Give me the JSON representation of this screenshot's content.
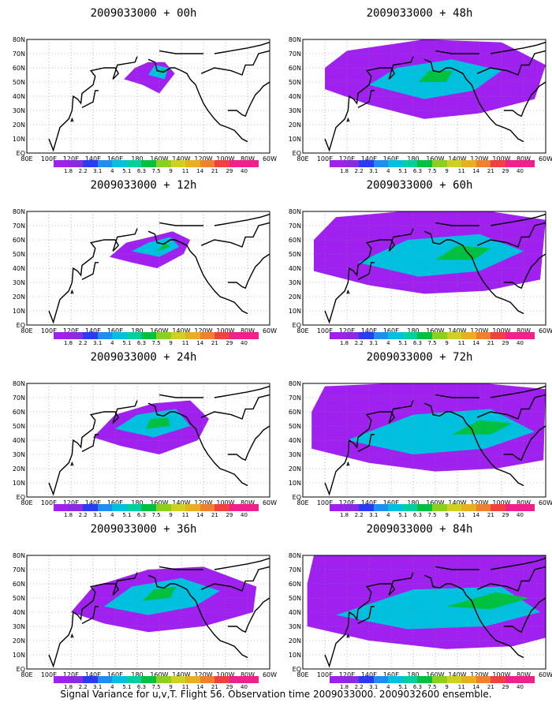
{
  "panels": [
    {
      "title": "2009033000 + 00h",
      "forecast_hour": 0
    },
    {
      "title": "2009033000 + 48h",
      "forecast_hour": 48
    },
    {
      "title": "2009033000 + 12h",
      "forecast_hour": 12
    },
    {
      "title": "2009033000 + 60h",
      "forecast_hour": 60
    },
    {
      "title": "2009033000 + 24h",
      "forecast_hour": 24
    },
    {
      "title": "2009033000 + 72h",
      "forecast_hour": 72
    },
    {
      "title": "2009033000 + 36h",
      "forecast_hour": 36
    },
    {
      "title": "2009033000 + 84h",
      "forecast_hour": 84
    }
  ],
  "lat_labels": [
    "80N",
    "70N",
    "60N",
    "50N",
    "40N",
    "30N",
    "20N",
    "10N",
    "EQ"
  ],
  "lon_labels": [
    "80E",
    "100E",
    "120E",
    "140E",
    "160E",
    "180",
    "160W",
    "140W",
    "120W",
    "100W",
    "80W",
    "60W"
  ],
  "colorbar": {
    "labels": [
      "1.8",
      "2.2",
      "3.1",
      "4",
      "5.1",
      "6.3",
      "7.5",
      "9",
      "11",
      "14",
      "21",
      "29",
      "40"
    ],
    "colors": [
      "#a020f0",
      "#8a2be2",
      "#2b3bf5",
      "#1e8ef0",
      "#00c0e0",
      "#00d0a0",
      "#00c040",
      "#8cd01c",
      "#d0d020",
      "#e8b020",
      "#f08030",
      "#f04040",
      "#f0208c",
      "#f0208c"
    ]
  },
  "caption": "Signal Variance for u,v,T. Flight 56. Observation time 2009033000. 2009032600 ensemble."
}
